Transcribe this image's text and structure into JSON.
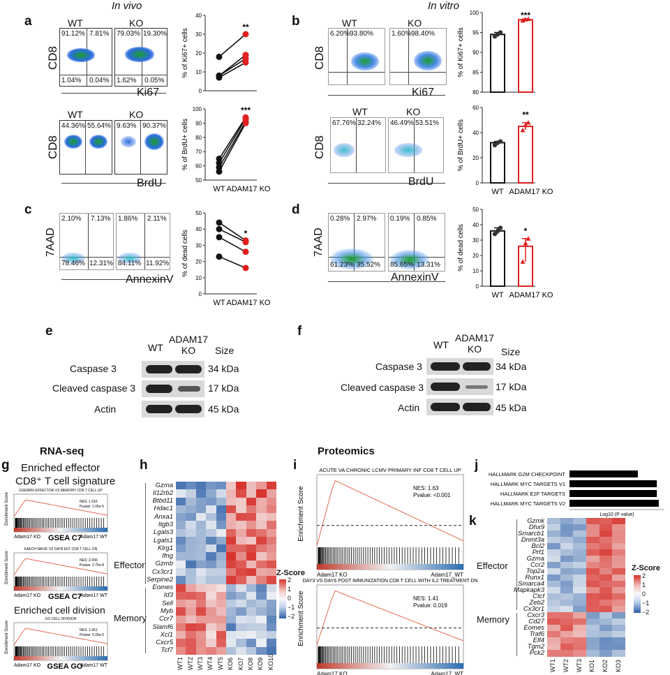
{
  "header": {
    "in_vivo": "In vivo",
    "in_vitro": "In vitro"
  },
  "panels": {
    "a": "a",
    "b": "b",
    "c": "c",
    "d": "d",
    "e": "e",
    "f": "f",
    "g": "g",
    "h": "h",
    "i": "i",
    "j": "j",
    "k": "k"
  },
  "flow": {
    "a_ki67": {
      "wt_label": "WT",
      "ko_label": "KO",
      "y_axis": "CD8",
      "x_axis": "Ki67",
      "wt": [
        "91.12%",
        "7.81%",
        "1.04%",
        "0.04%"
      ],
      "ko": [
        "79.03%",
        "19.30%",
        "1.62%",
        "0.05%"
      ]
    },
    "a_brdu": {
      "wt_label": "WT",
      "ko_label": "KO",
      "y_axis": "CD8",
      "x_axis": "BrdU",
      "wt": [
        "44.36%",
        "55.64%"
      ],
      "ko": [
        "9.63%",
        "90.37%"
      ]
    },
    "b_ki67": {
      "wt_label": "WT",
      "ko_label": "KO",
      "y_axis": "CD8",
      "x_axis": "Ki67",
      "wt": [
        "6.20%",
        "93.80%"
      ],
      "ko": [
        "1.60%",
        "98.40%"
      ]
    },
    "b_brdu": {
      "wt_label": "WT",
      "ko_label": "KO",
      "y_axis": "CD8",
      "x_axis": "BrdU",
      "wt": [
        "67.76%",
        "32.24%"
      ],
      "ko": [
        "46.49%",
        "53.51%"
      ]
    },
    "c": {
      "y_axis": "7AAD",
      "x_axis": "AnnexinV",
      "wt": [
        "2.10%",
        "7.13%",
        "78.46%",
        "12.31%"
      ],
      "ko": [
        "1.86%",
        "2.11%",
        "84.11%",
        "11.92%"
      ]
    },
    "d": {
      "y_axis": "7AAD",
      "x_axis": "AnnexinV",
      "wt": [
        "0.28%",
        "2.97%",
        "61.23%",
        "35.52%"
      ],
      "ko": [
        "0.19%",
        "0.85%",
        "85.65%",
        "13.31%"
      ]
    }
  },
  "chart_data": [
    {
      "id": "a_ki67_paired",
      "type": "scatter",
      "ylabel": "% of Ki67+ cells",
      "ylim": [
        0,
        40
      ],
      "yticks": [
        "0",
        "10",
        "20",
        "30",
        "40"
      ],
      "significance": "**",
      "pairs": [
        [
          18,
          30
        ],
        [
          8,
          19
        ],
        [
          8,
          17
        ],
        [
          7,
          15
        ]
      ]
    },
    {
      "id": "a_brdu_paired",
      "type": "scatter",
      "ylabel": "% of BrdU+ cells",
      "ylim": [
        50,
        100
      ],
      "yticks": [
        "50",
        "60",
        "70",
        "80",
        "90",
        "100"
      ],
      "significance": "***",
      "categories": [
        "WT",
        "ADAM17 KO"
      ],
      "pairs": [
        [
          65,
          94
        ],
        [
          62,
          93
        ],
        [
          59,
          91
        ],
        [
          56,
          90
        ]
      ]
    },
    {
      "id": "b_ki67_bar",
      "type": "bar",
      "ylabel": "% of Ki67+ cells",
      "ylim": [
        80,
        100
      ],
      "yticks": [
        "80",
        "85",
        "90",
        "95",
        "100"
      ],
      "significance": "***",
      "categories": [
        "WT",
        "ADAM17 KO"
      ],
      "values": [
        94.5,
        98.2
      ],
      "points": [
        [
          94.0,
          94.5,
          95.0
        ],
        [
          98.0,
          98.3,
          98.4
        ]
      ]
    },
    {
      "id": "b_brdu_bar",
      "type": "bar",
      "ylabel": "% of BrdU+ cells",
      "ylim": [
        0,
        60
      ],
      "yticks": [
        "0",
        "20",
        "40",
        "60"
      ],
      "significance": "**",
      "categories": [
        "WT",
        "ADAM17 KO"
      ],
      "values": [
        32,
        45
      ],
      "points": [
        [
          30,
          32,
          33
        ],
        [
          42,
          46,
          48
        ]
      ]
    },
    {
      "id": "c_paired",
      "type": "scatter",
      "ylabel": "% of dead cells",
      "ylim": [
        0,
        50
      ],
      "yticks": [
        "0",
        "10",
        "20",
        "30",
        "40",
        "50"
      ],
      "significance": "*",
      "categories": [
        "WT",
        "ADAM17 KO"
      ],
      "pairs": [
        [
          44,
          33
        ],
        [
          40,
          32
        ],
        [
          35,
          26
        ],
        [
          23,
          16
        ]
      ]
    },
    {
      "id": "d_bar",
      "type": "bar",
      "ylabel": "% of dead cells",
      "ylim": [
        0,
        50
      ],
      "yticks": [
        "0",
        "10",
        "20",
        "30",
        "40",
        "50"
      ],
      "significance": "*",
      "categories": [
        "WT",
        "ADAM17 KO"
      ],
      "values": [
        36,
        26
      ],
      "points": [
        [
          34,
          36,
          38
        ],
        [
          16,
          28,
          31
        ]
      ]
    },
    {
      "id": "j_bar",
      "type": "bar",
      "xlabel": "Log10 (P value)",
      "categories": [
        "HALLMARK G2M CHECKPOINT",
        "HALLMARK MYC TARGETS V1",
        "HALLMARK E2F TARGETS",
        "HALLMARK MYC TARGETS V2"
      ],
      "values": [
        7.2,
        9.2,
        9.2,
        9.4
      ]
    }
  ],
  "blots": {
    "e": {
      "wt": "WT",
      "ko": "ADAM17\nKO",
      "size": "Size",
      "rows": [
        {
          "label": "Caspase 3",
          "kda": "34 kDa"
        },
        {
          "label": "Cleaved caspase 3",
          "kda": "17 kDa"
        },
        {
          "label": "Actin",
          "kda": "45 kDa"
        }
      ]
    },
    "f": {
      "wt": "WT",
      "ko": "ADAM17\nKO",
      "size": "Size",
      "rows": [
        {
          "label": "Caspase 3",
          "kda": "34 kDa"
        },
        {
          "label": "Cleaved caspase 3",
          "kda": "17 kDa"
        },
        {
          "label": "Actin",
          "kda": "45 kDa"
        }
      ]
    }
  },
  "rnaseq": {
    "title": "RNA-seq",
    "subtitle1": "Enriched effector",
    "subtitle2": "CD8⁺ T cell signature",
    "plots": [
      {
        "set": "GSE9650 EFFECTOR VS MEMORY CD8 T CELL UP",
        "nes": "NES: 1.916",
        "pval": "Pvalue: 1.05e-5",
        "left": "Adam17 KO",
        "mid": "GSEA C7",
        "right": "Adam17 WT"
      },
      {
        "set": "KAECH NAIVE VS DAY8 EFF CD8 T CELL DN",
        "nes": "NES: 2.000",
        "pval": "Pvalue: 2.75e-8",
        "left": "Adam17 KO",
        "mid": "GSEA C7",
        "right": "Adam17 WT"
      },
      {
        "set": "GO CELL DIVISION",
        "nes": "NES: 1.661",
        "pval": "Pvalue: 5.06e-5",
        "left": "Adam17 KO",
        "mid": "GSEA GO",
        "right": "Adam17 WT"
      }
    ],
    "division_title": "Enriched cell division",
    "ylabel": "Enrichment Score"
  },
  "heatmap_h": {
    "genes": [
      "Gzma",
      "Il12rb2",
      "Btbd11",
      "Hdac1",
      "Anxa1",
      "Itgb3",
      "Lgals3",
      "Lgals1",
      "Klrg1",
      "Ifng",
      "Gzmb",
      "Cx3cr1",
      "Serpine2",
      "Eomes",
      "Id3",
      "Sell",
      "Myb",
      "Ccr7",
      "Slamf6",
      "Xcl1",
      "Cxcr5",
      "Tcf7"
    ],
    "samples": [
      "WT1",
      "WT2",
      "WT3",
      "WT4",
      "WT5",
      "KO6",
      "KO7",
      "KO8",
      "KO9",
      "KO10"
    ],
    "effector": "Effector",
    "memory": "Memory",
    "legend_title": "Z-Score",
    "legend_ticks": [
      "2",
      "1",
      "0",
      "−1",
      "−2"
    ]
  },
  "proteomics": {
    "title": "Proteomics",
    "plots": [
      {
        "set": "ACUTE VA CHRONIC LCMV PRIMARY INF CD8 T CELL UP",
        "nes": "NES: 1.63",
        "pval": "Pvalue: <0.001",
        "left": "Adam17 KO",
        "right": "Adam17_WT"
      },
      {
        "set": "DAY3 VS DAY6 POST IMMUNIZATION  CD8 T CELL WITH IL2 TREATMENT  DN",
        "nes": "NES: 1.41",
        "pval": "Pvalue: 0.019",
        "left": "Adam17 KO",
        "right": "Adam17_WT"
      }
    ],
    "ylabel": "Enrichment Score"
  },
  "heatmap_k": {
    "genes": [
      "Gzmk",
      "Dhx9",
      "Smarcb1",
      "Dnmt3a",
      "Bcl2",
      "Prf1",
      "Gzma",
      "Ccr2",
      "Top2a",
      "Runx1",
      "Smarca4",
      "Mapkapk3",
      "Ctcf",
      "Zeb2",
      "Cx3cr1",
      "Cxcr3",
      "Cd27",
      "Eomes",
      "Traf6",
      "Elf4",
      "Tgm2",
      "Pck2"
    ],
    "samples": [
      "WT1",
      "WT2",
      "WT3",
      "KO1",
      "KO2",
      "KO3"
    ],
    "effector": "Effector",
    "memory": "Memory",
    "legend_title": "Z-Score",
    "legend_ticks": [
      "2",
      "1",
      "0",
      "−1",
      "−2"
    ]
  },
  "colors": {
    "wt": "#111111",
    "ko": "#e02020",
    "hm_red": "#d7302a",
    "hm_blue": "#2b5ea7"
  }
}
